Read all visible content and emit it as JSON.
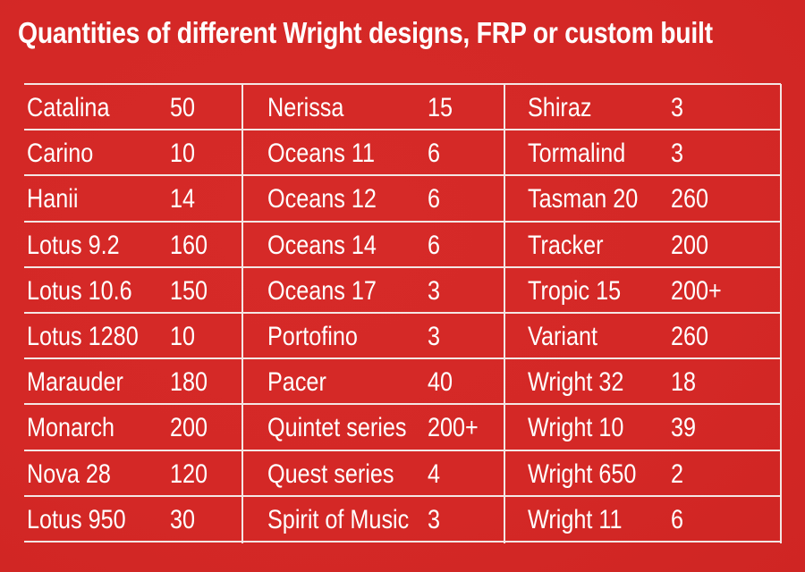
{
  "title": "Quantities of different Wright designs, FRP or custom built",
  "table": {
    "columns": [
      [
        {
          "name": "Catalina",
          "qty": "50"
        },
        {
          "name": "Carino",
          "qty": "10"
        },
        {
          "name": "Hanii",
          "qty": "14"
        },
        {
          "name": "Lotus 9.2",
          "qty": "160"
        },
        {
          "name": "Lotus 10.6",
          "qty": "150"
        },
        {
          "name": "Lotus 1280",
          "qty": "10"
        },
        {
          "name": "Marauder",
          "qty": "180"
        },
        {
          "name": "Monarch",
          "qty": "200"
        },
        {
          "name": "Nova 28",
          "qty": "120"
        },
        {
          "name": "Lotus 950",
          "qty": "30"
        }
      ],
      [
        {
          "name": "Nerissa",
          "qty": "15"
        },
        {
          "name": "Oceans 11",
          "qty": "6"
        },
        {
          "name": "Oceans 12",
          "qty": "6"
        },
        {
          "name": "Oceans 14",
          "qty": "6"
        },
        {
          "name": "Oceans 17",
          "qty": "3"
        },
        {
          "name": "Portofino",
          "qty": "3"
        },
        {
          "name": "Pacer",
          "qty": "40"
        },
        {
          "name": "Quintet series",
          "qty": "200+"
        },
        {
          "name": "Quest series",
          "qty": "4"
        },
        {
          "name": "Spirit of Music",
          "qty": "3"
        }
      ],
      [
        {
          "name": "Shiraz",
          "qty": "3"
        },
        {
          "name": "Tormalind",
          "qty": "3"
        },
        {
          "name": "Tasman 20",
          "qty": "260"
        },
        {
          "name": "Tracker",
          "qty": "200"
        },
        {
          "name": "Tropic 15",
          "qty": "200+"
        },
        {
          "name": "Variant",
          "qty": "260"
        },
        {
          "name": "Wright 32",
          "qty": "18"
        },
        {
          "name": "Wright 10",
          "qty": "39"
        },
        {
          "name": "Wright 650",
          "qty": "2"
        },
        {
          "name": "Wright 11",
          "qty": "6"
        }
      ]
    ]
  },
  "colors": {
    "background": "#d42826",
    "text": "#ffffff",
    "rule": "#f4e6e4"
  }
}
